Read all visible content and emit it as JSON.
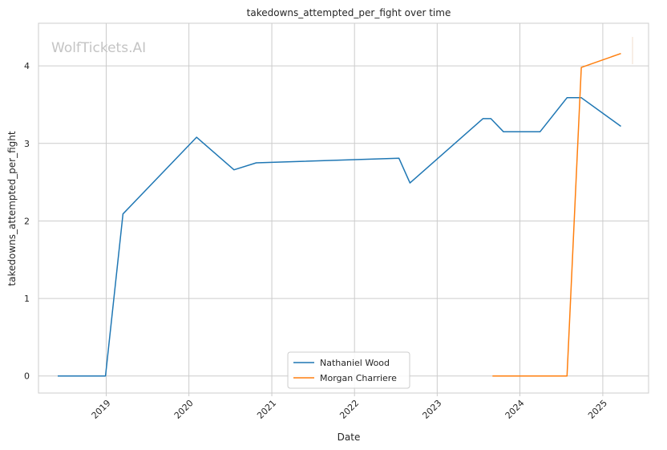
{
  "chart_data": {
    "type": "line",
    "title": "takedowns_attempted_per_fight over time",
    "xlabel": "Date",
    "ylabel": "takedowns_attempted_per_fight",
    "watermark": "WolfTickets.AI",
    "x_ticks": [
      "2019",
      "2020",
      "2021",
      "2022",
      "2023",
      "2024",
      "2025"
    ],
    "y_ticks": [
      "0",
      "1",
      "2",
      "3",
      "4"
    ],
    "ylim": [
      -0.22,
      4.55
    ],
    "xlim": [
      "2018-03-08",
      "2025-07-22"
    ],
    "grid": true,
    "legend_position": "bottom-center",
    "series": [
      {
        "name": "Nathaniel Wood",
        "color": "#1f77b4",
        "points": [
          [
            "2018-06-01",
            0.0
          ],
          [
            "2018-12-29",
            0.0
          ],
          [
            "2019-03-16",
            2.09
          ],
          [
            "2020-02-04",
            3.08
          ],
          [
            "2020-07-18",
            2.66
          ],
          [
            "2020-10-24",
            2.75
          ],
          [
            "2022-07-16",
            2.81
          ],
          [
            "2022-09-03",
            2.49
          ],
          [
            "2023-07-22",
            3.32
          ],
          [
            "2023-08-26",
            3.32
          ],
          [
            "2023-10-21",
            3.15
          ],
          [
            "2024-03-30",
            3.15
          ],
          [
            "2024-07-27",
            3.59
          ],
          [
            "2024-09-28",
            3.59
          ],
          [
            "2025-03-22",
            3.22
          ]
        ]
      },
      {
        "name": "Morgan Charriere",
        "color": "#ff7f0e",
        "points": [
          [
            "2023-09-02",
            0.0
          ],
          [
            "2024-07-27",
            0.0
          ],
          [
            "2024-09-28",
            3.98
          ],
          [
            "2025-03-22",
            4.16
          ]
        ]
      }
    ]
  }
}
